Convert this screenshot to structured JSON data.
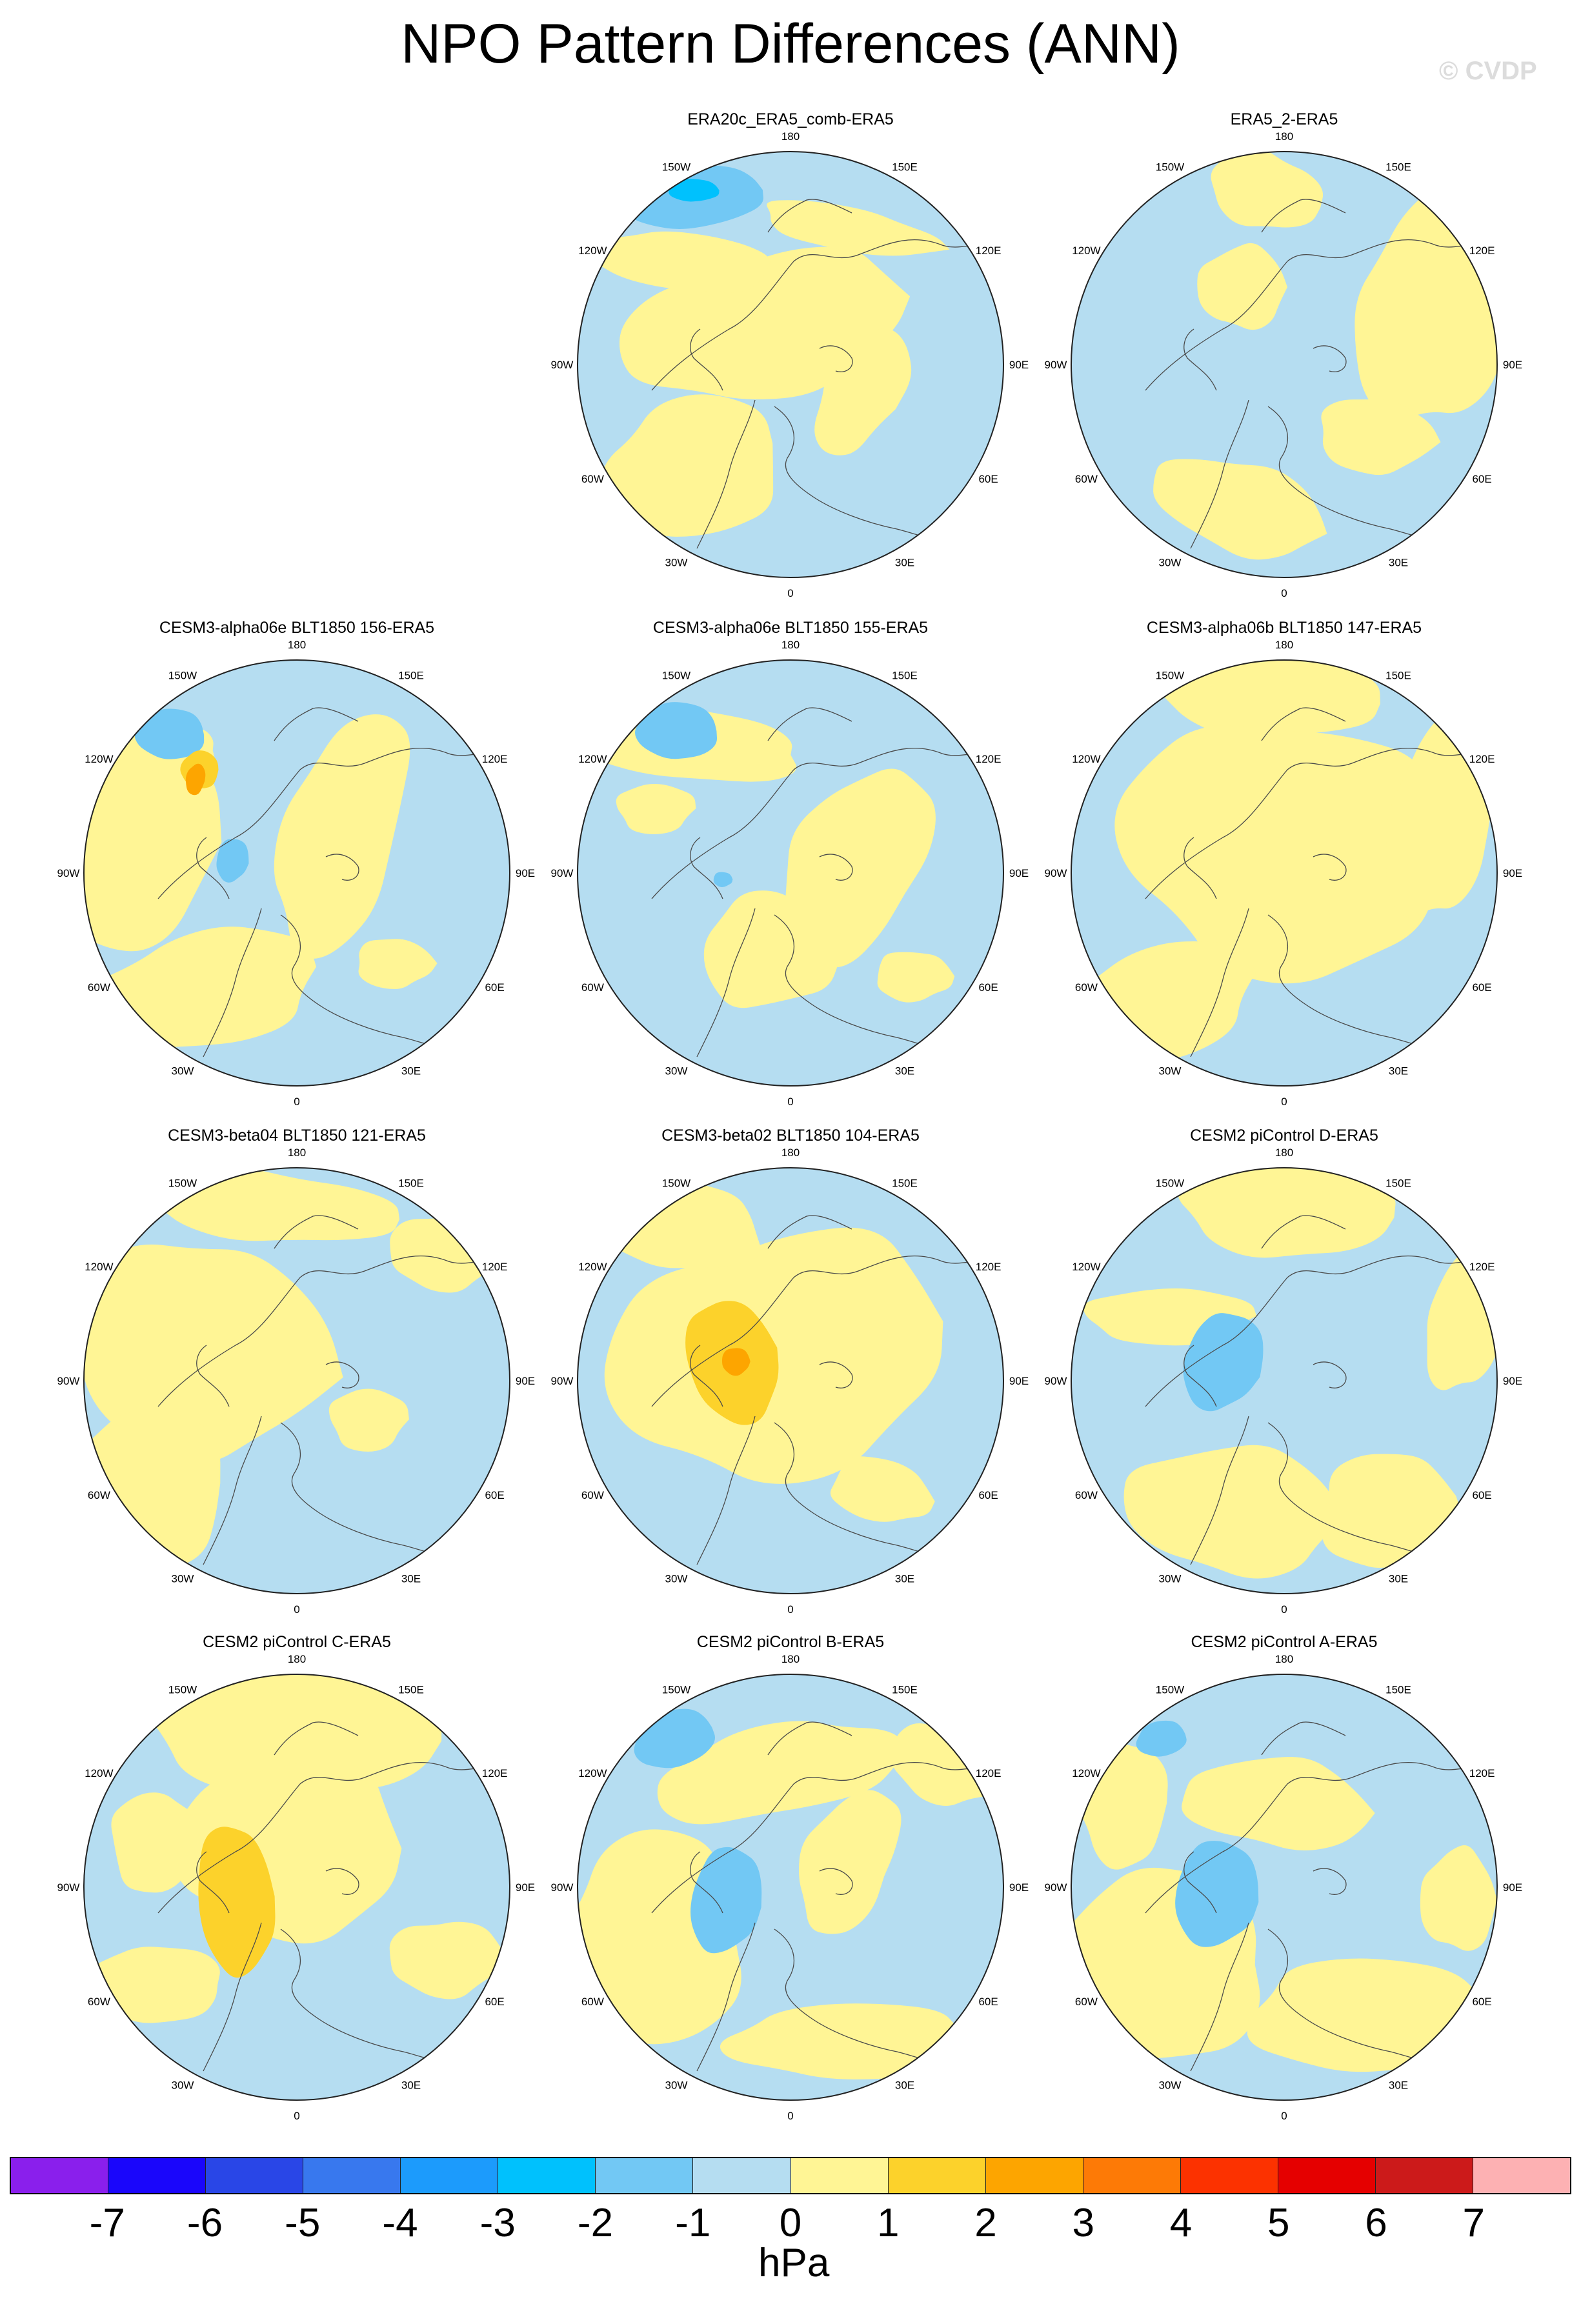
{
  "title": "NPO Pattern Differences (ANN)",
  "watermark": "© CVDP",
  "lon_labels": [
    "180",
    "150E",
    "120E",
    "90E",
    "60E",
    "30E",
    "0",
    "30W",
    "60W",
    "90W",
    "120W",
    "150W"
  ],
  "colors": {
    "ocean_bg": "#b5ddf1",
    "coast": "#4a4a4a",
    "border": "#222222"
  },
  "colorbar": {
    "colors": [
      "#8a1fec",
      "#1a06fb",
      "#2946e7",
      "#3878ee",
      "#1c9bfc",
      "#00c1fd",
      "#72c8f4",
      "#b5ddf1",
      "#fff595",
      "#fcd22b",
      "#fda500",
      "#fd7a06",
      "#fc3200",
      "#e50000",
      "#cc1a1a",
      "#fdb1b3"
    ],
    "ticks": [
      "-7",
      "-6",
      "-5",
      "-4",
      "-3",
      "-2",
      "-1",
      "0",
      "1",
      "2",
      "3",
      "4",
      "5",
      "6",
      "7"
    ],
    "units": "hPa"
  },
  "panels": [
    {
      "title": "ERA20c_ERA5_comb-ERA5",
      "lows": [
        "-2",
        "-3"
      ],
      "highs": []
    },
    {
      "title": "ERA5_2-ERA5",
      "lows": [],
      "highs": []
    },
    {
      "title": "CESM3-alpha06e BLT1850 156-ERA5",
      "lows": [
        "-2",
        "-2"
      ],
      "highs": [
        "2",
        "3"
      ]
    },
    {
      "title": "CESM3-alpha06e BLT1850 155-ERA5",
      "lows": [
        "-2",
        "-2"
      ],
      "highs": []
    },
    {
      "title": "CESM3-alpha06b BLT1850 147-ERA5",
      "lows": [],
      "highs": []
    },
    {
      "title": "CESM3-beta04 BLT1850 121-ERA5",
      "lows": [],
      "highs": []
    },
    {
      "title": "CESM3-beta02 BLT1850 104-ERA5",
      "lows": [],
      "highs": [
        "2",
        "3"
      ]
    },
    {
      "title": "CESM2 piControl D-ERA5",
      "lows": [
        "-2"
      ],
      "highs": []
    },
    {
      "title": "CESM2 piControl C-ERA5",
      "lows": [],
      "highs": [
        "2"
      ]
    },
    {
      "title": "CESM2 piControl B-ERA5",
      "lows": [
        "-2",
        "-2"
      ],
      "highs": []
    },
    {
      "title": "CESM2 piControl A-ERA5",
      "lows": [
        "-2",
        "-2"
      ],
      "highs": []
    }
  ]
}
